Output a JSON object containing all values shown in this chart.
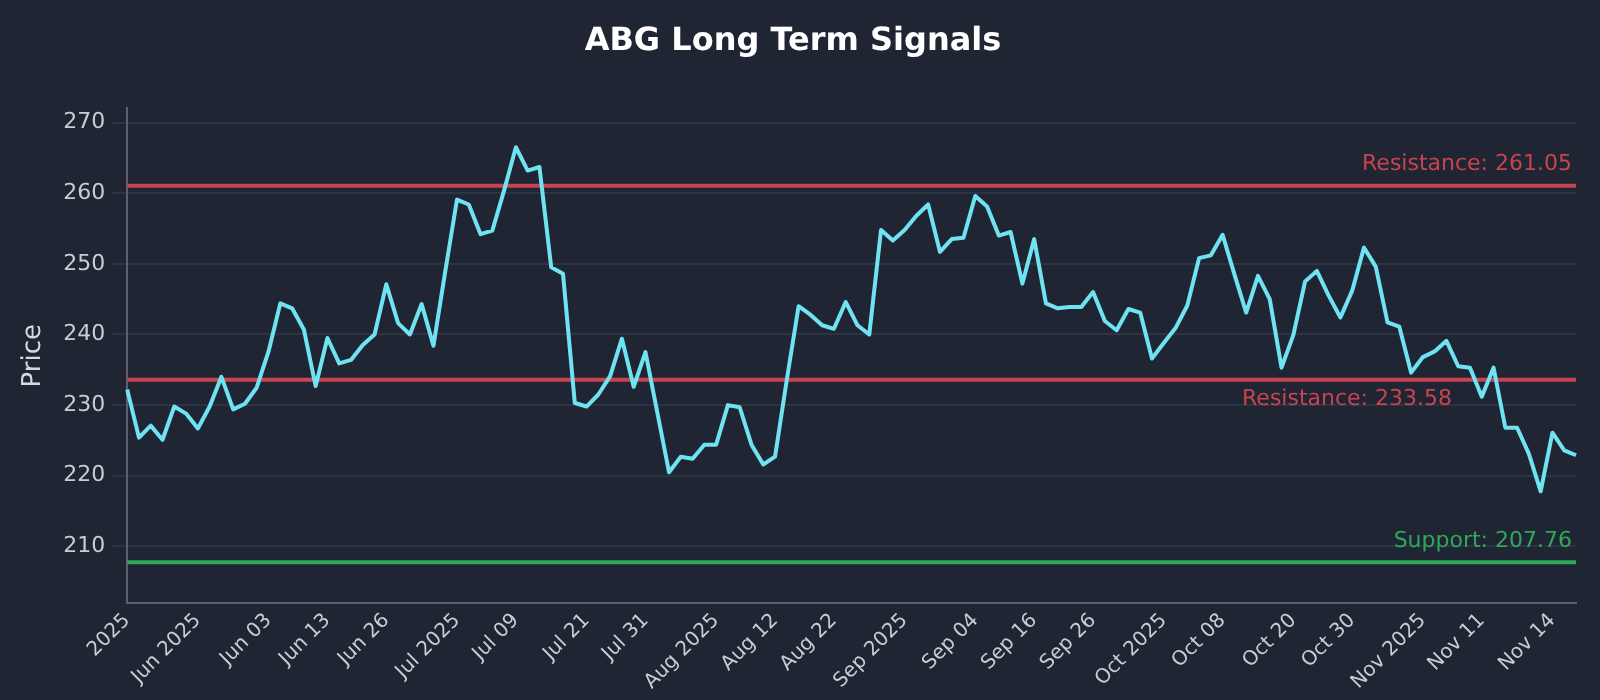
{
  "chart_data": {
    "type": "line",
    "title": "ABG Long Term Signals",
    "ylabel": "Price",
    "categories": [
      "2025",
      null,
      null,
      null,
      null,
      null,
      "Jun 2025",
      null,
      null,
      null,
      null,
      null,
      "Jun 03",
      null,
      null,
      null,
      null,
      "Jun 13",
      null,
      null,
      null,
      null,
      "Jun 26",
      null,
      null,
      null,
      null,
      null,
      "Jul 2025",
      null,
      null,
      null,
      null,
      "Jul 09",
      null,
      null,
      null,
      null,
      null,
      "Jul 21",
      null,
      null,
      null,
      null,
      "Jul 31",
      null,
      null,
      null,
      null,
      null,
      "Aug 2025",
      null,
      null,
      null,
      null,
      "Aug 12",
      null,
      null,
      null,
      null,
      "Aug 22",
      null,
      null,
      null,
      null,
      null,
      "Sep 2025",
      null,
      null,
      null,
      null,
      null,
      "Sep 04",
      null,
      null,
      null,
      null,
      "Sep 16",
      null,
      null,
      null,
      null,
      "Sep 26",
      null,
      null,
      null,
      null,
      null,
      "Oct 2025",
      null,
      null,
      null,
      null,
      "Oct 08",
      null,
      null,
      null,
      null,
      null,
      "Oct 20",
      null,
      null,
      null,
      null,
      "Oct 30",
      null,
      null,
      null,
      null,
      null,
      "Nov 2025",
      null,
      null,
      null,
      null,
      "Nov 11",
      null,
      null,
      null,
      null,
      null,
      "Nov 14",
      null,
      null
    ],
    "series": [
      {
        "color": "#6fe3f2",
        "values": [
          232.2,
          225.4,
          227.1,
          225.1,
          229.8,
          228.8,
          226.7,
          229.8,
          234.0,
          229.4,
          230.2,
          232.5,
          237.6,
          244.4,
          243.7,
          240.7,
          232.7,
          239.5,
          235.9,
          236.4,
          238.5,
          240.0,
          247.1,
          241.6,
          240.0,
          244.3,
          238.4,
          248.9,
          259.1,
          258.4,
          254.2,
          254.7,
          260.4,
          266.5,
          263.2,
          263.7,
          249.5,
          248.6,
          230.3,
          229.8,
          231.5,
          234.1,
          239.4,
          232.6,
          237.5,
          229.0,
          220.5,
          222.7,
          222.4,
          224.4,
          224.4,
          230.0,
          229.7,
          224.4,
          221.6,
          222.7,
          233.6,
          244.0,
          242.8,
          241.3,
          240.8,
          244.6,
          241.3,
          240.0,
          254.8,
          253.3,
          254.8,
          256.8,
          258.4,
          251.7,
          253.5,
          253.7,
          259.6,
          258.1,
          254.0,
          254.5,
          247.2,
          253.5,
          244.4,
          243.7,
          243.9,
          243.9,
          246.0,
          241.9,
          240.6,
          243.6,
          243.1,
          236.6,
          238.8,
          240.9,
          244.1,
          250.8,
          251.2,
          254.1,
          248.5,
          243.1,
          248.3,
          245.0,
          235.3,
          239.9,
          247.5,
          249.0,
          245.5,
          242.4,
          246.2,
          252.3,
          249.6,
          241.7,
          241.1,
          234.6,
          236.8,
          237.6,
          239.1,
          235.5,
          235.3,
          231.2,
          235.3,
          226.8,
          226.8,
          223.1,
          217.8,
          226.1,
          223.6,
          222.9
        ]
      }
    ],
    "ylim": [
      202,
      272
    ],
    "yticks": [
      210,
      220,
      230,
      240,
      250,
      260,
      270
    ],
    "grid": "y",
    "legend": false,
    "marker": "none",
    "line_style": "solid",
    "ref_lines": [
      {
        "axis": "y",
        "value": 261.05,
        "label": "Resistance: 261.05",
        "color": "#c8444f"
      },
      {
        "axis": "y",
        "value": 233.58,
        "label": "Resistance: 233.58",
        "color": "#c8444f"
      },
      {
        "axis": "y",
        "value": 207.76,
        "label": "Support: 207.76",
        "color": "#2fa85a"
      }
    ]
  }
}
